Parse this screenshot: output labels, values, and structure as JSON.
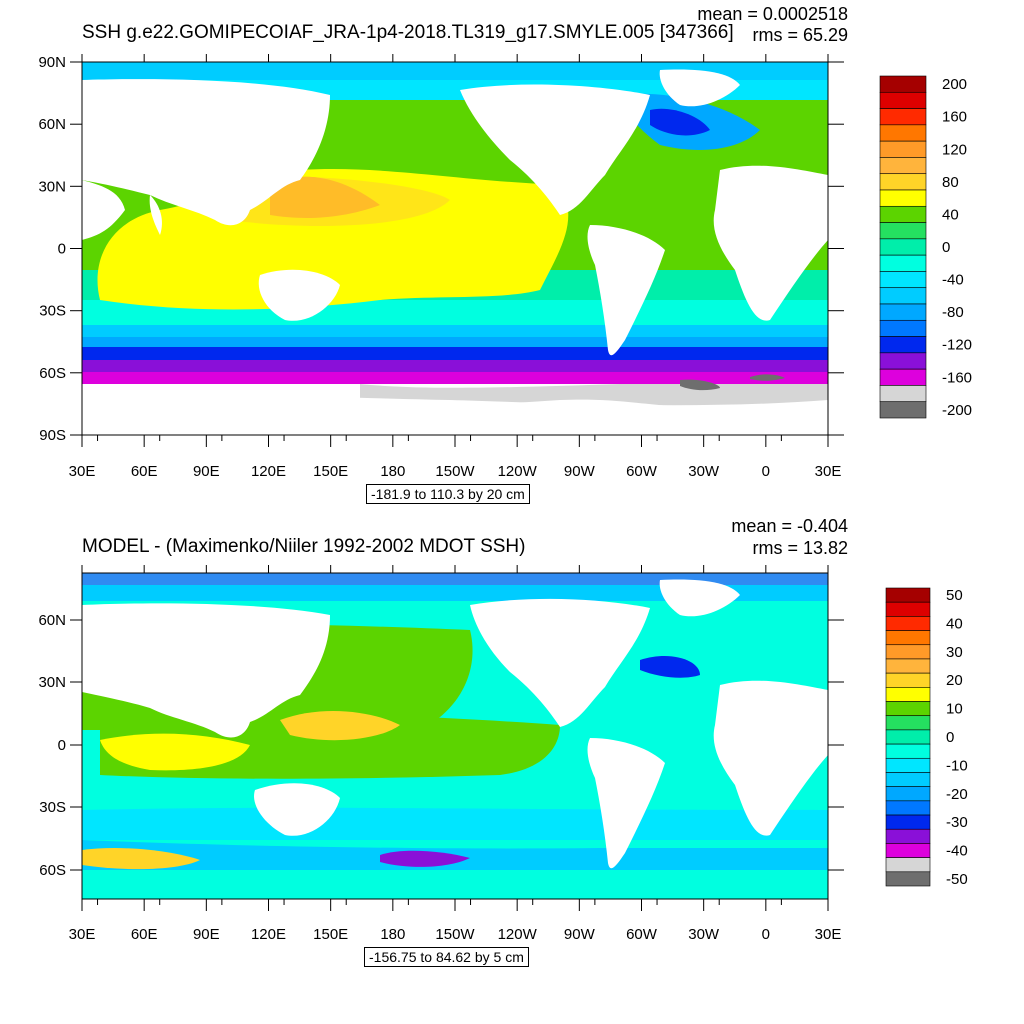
{
  "panels": [
    {
      "title": "SSH g.e22.GOMIPECOIAF_JRA-1p4-2018.TL319_g17.SMYLE.005 [347366]",
      "mean_label": "mean = 0.0002518",
      "rms_label": "rms = 65.29",
      "range_label": "-181.9 to 110.3 by 20 cm",
      "lon_labels": [
        "30E",
        "60E",
        "90E",
        "120E",
        "150E",
        "180",
        "150W",
        "120W",
        "90W",
        "60W",
        "30W",
        "0",
        "30E"
      ],
      "lat_labels": [
        "90N",
        "60N",
        "30N",
        "0",
        "30S",
        "60S",
        "90S"
      ],
      "colorbar": {
        "labels": [
          "200",
          "160",
          "120",
          "80",
          "40",
          "0",
          "-40",
          "-80",
          "-120",
          "-160",
          "-200"
        ],
        "colors": [
          "#a50000",
          "#dd0000",
          "#ff2a00",
          "#ff7700",
          "#ff9a28",
          "#ffb43c",
          "#ffd428",
          "#ffff00",
          "#5cd400",
          "#25e060",
          "#00eeaa",
          "#00ffe0",
          "#00e6ff",
          "#00ccff",
          "#00a8ff",
          "#0078ff",
          "#0028ee",
          "#8a10d8",
          "#dd00dd",
          "#d6d6d6",
          "#6e6e6e"
        ]
      }
    },
    {
      "title": "MODEL - (Maximenko/Niiler 1992-2002 MDOT SSH)",
      "mean_label": "mean = -0.404",
      "rms_label": "rms = 13.82",
      "range_label": "-156.75 to 84.62 by 5 cm",
      "lon_labels": [
        "30E",
        "60E",
        "90E",
        "120E",
        "150E",
        "180",
        "150W",
        "120W",
        "90W",
        "60W",
        "30W",
        "0",
        "30E"
      ],
      "lat_labels": [
        "60N",
        "30N",
        "0",
        "30S",
        "60S"
      ],
      "colorbar": {
        "labels": [
          "50",
          "40",
          "30",
          "20",
          "10",
          "0",
          "-10",
          "-20",
          "-30",
          "-40",
          "-50"
        ],
        "colors": [
          "#a50000",
          "#dd0000",
          "#ff2a00",
          "#ff7700",
          "#ff9a28",
          "#ffb43c",
          "#ffd428",
          "#ffff00",
          "#5cd400",
          "#25e060",
          "#00eeaa",
          "#00ffe0",
          "#00e6ff",
          "#00ccff",
          "#00a8ff",
          "#0078ff",
          "#0028ee",
          "#8a10d8",
          "#dd00dd",
          "#d6d6d6",
          "#6e6e6e"
        ]
      }
    }
  ]
}
